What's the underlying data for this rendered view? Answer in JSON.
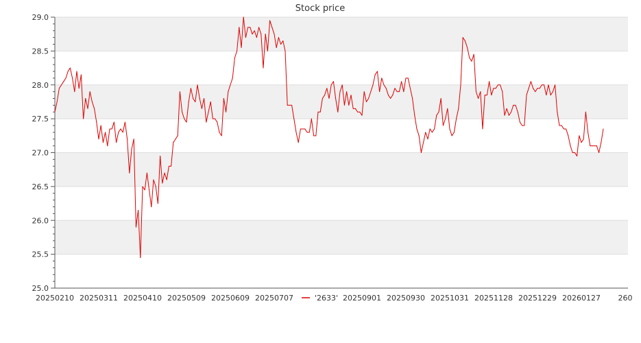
{
  "chart_data": {
    "type": "line",
    "title": "Stock price",
    "xlabel": "",
    "ylabel": "",
    "ylim": [
      25.0,
      29.0
    ],
    "y_ticks": [
      "25.0",
      "25.5",
      "26.0",
      "26.5",
      "27.0",
      "27.5",
      "28.0",
      "28.5",
      "29.0"
    ],
    "x_tick_labels": [
      "20250210",
      "20250311",
      "20250410",
      "20250509",
      "20250609",
      "20250707",
      "20250901",
      "20250930",
      "20251031",
      "20251128",
      "20251229",
      "20260127",
      "260"
    ],
    "x_tick_index": [
      0,
      20,
      40,
      60,
      80,
      100,
      140,
      160,
      180,
      200,
      220,
      240,
      260
    ],
    "legend": {
      "position": "bottom-center"
    },
    "grid": true,
    "series": [
      {
        "name": "'2633'",
        "color": "#dd0000",
        "values": [
          27.6,
          27.75,
          27.95,
          28.0,
          28.05,
          28.1,
          28.2,
          28.25,
          28.1,
          27.9,
          28.2,
          27.95,
          28.15,
          27.5,
          27.8,
          27.65,
          27.9,
          27.75,
          27.65,
          27.45,
          27.2,
          27.4,
          27.15,
          27.3,
          27.1,
          27.35,
          27.35,
          27.45,
          27.15,
          27.3,
          27.35,
          27.3,
          27.45,
          27.2,
          26.7,
          27.05,
          27.2,
          25.9,
          26.15,
          25.45,
          26.5,
          26.45,
          26.7,
          26.45,
          26.2,
          26.6,
          26.5,
          26.25,
          26.95,
          26.55,
          26.7,
          26.6,
          26.8,
          26.8,
          27.15,
          27.2,
          27.25,
          27.9,
          27.6,
          27.5,
          27.45,
          27.75,
          27.95,
          27.8,
          27.75,
          28.0,
          27.8,
          27.65,
          27.8,
          27.45,
          27.6,
          27.75,
          27.5,
          27.5,
          27.45,
          27.3,
          27.25,
          27.8,
          27.6,
          27.9,
          28.0,
          28.1,
          28.4,
          28.5,
          28.85,
          28.55,
          29.0,
          28.7,
          28.85,
          28.85,
          28.75,
          28.8,
          28.7,
          28.85,
          28.75,
          28.25,
          28.75,
          28.5,
          28.95,
          28.85,
          28.75,
          28.55,
          28.7,
          28.6,
          28.65,
          28.5,
          27.7,
          27.7,
          27.7,
          27.5,
          27.3,
          27.15,
          27.35,
          27.35,
          27.35,
          27.3,
          27.3,
          27.5,
          27.25,
          27.25,
          27.6,
          27.6,
          27.8,
          27.85,
          27.95,
          27.8,
          28.0,
          28.05,
          27.8,
          27.6,
          27.9,
          28.0,
          27.7,
          27.9,
          27.7,
          27.85,
          27.65,
          27.65,
          27.6,
          27.6,
          27.55,
          27.9,
          27.75,
          27.8,
          27.9,
          28.0,
          28.15,
          28.2,
          27.9,
          28.1,
          28.0,
          27.95,
          27.85,
          27.8,
          27.85,
          27.95,
          27.9,
          27.9,
          28.05,
          27.9,
          28.1,
          28.1,
          27.95,
          27.8,
          27.55,
          27.35,
          27.25,
          27.0,
          27.15,
          27.3,
          27.2,
          27.35,
          27.3,
          27.35,
          27.55,
          27.6,
          27.8,
          27.4,
          27.5,
          27.65,
          27.35,
          27.25,
          27.3,
          27.5,
          27.65,
          28.0,
          28.7,
          28.65,
          28.55,
          28.4,
          28.35,
          28.45,
          27.9,
          27.8,
          27.9,
          27.35,
          27.85,
          27.85,
          28.05,
          27.85,
          27.95,
          27.95,
          28.0,
          28.0,
          27.9,
          27.55,
          27.65,
          27.55,
          27.6,
          27.7,
          27.7,
          27.6,
          27.45,
          27.4,
          27.4,
          27.85,
          27.95,
          28.05,
          27.95,
          27.9,
          27.95,
          27.95,
          28.0,
          28.0,
          27.85,
          28.0,
          27.85,
          27.9,
          28.0,
          27.6,
          27.4,
          27.4,
          27.35,
          27.35,
          27.25,
          27.1,
          27.0,
          27.0,
          26.95,
          27.25,
          27.15,
          27.2,
          27.6,
          27.3,
          27.1,
          27.1,
          27.1,
          27.1,
          27.0,
          27.15,
          27.35
        ]
      }
    ]
  }
}
